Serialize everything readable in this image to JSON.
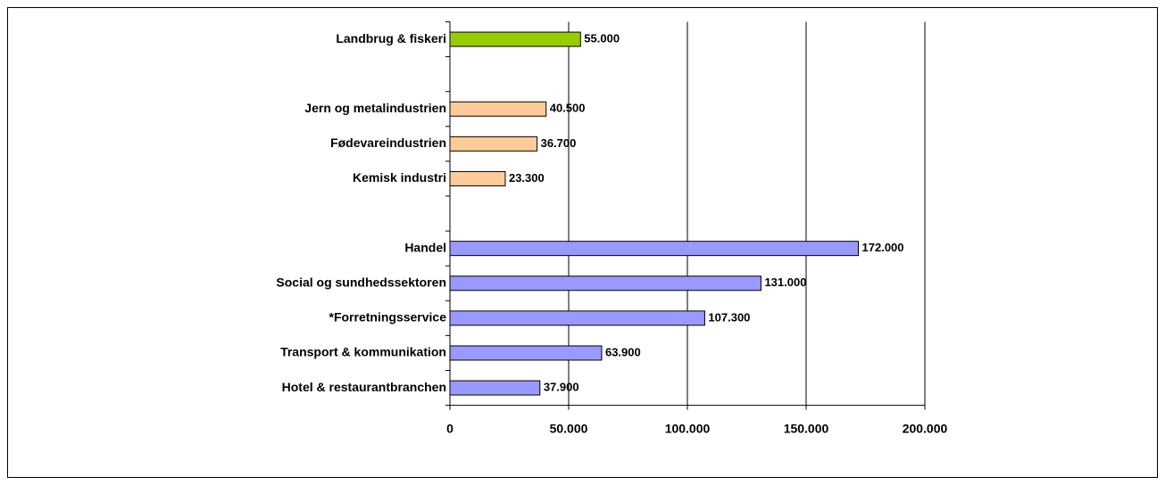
{
  "chart_data": {
    "type": "barh",
    "categories": [
      "Landbrug & fiskeri",
      null,
      "Jern og metalindustrien",
      "Fødevareindustrien",
      "Kemisk industri",
      null,
      "Handel",
      "Social og sundhedssektoren",
      "*Forretningsservice",
      "Transport & kommunikation",
      "Hotel & restaurantbranchen"
    ],
    "values": [
      55000,
      null,
      40500,
      36700,
      23300,
      null,
      172000,
      131000,
      107300,
      63900,
      37900
    ],
    "value_labels": [
      "55.000",
      null,
      "40.500",
      "36.700",
      "23.300",
      null,
      "172.000",
      "131.000",
      "107.300",
      "63.900",
      "37.900"
    ],
    "colors": [
      "#99cc00",
      null,
      "#ffcc99",
      "#ffcc99",
      "#ffcc99",
      null,
      "#9999ff",
      "#9999ff",
      "#9999ff",
      "#9999ff",
      "#9999ff"
    ],
    "xlim": [
      0,
      200000
    ],
    "xticks": [
      0,
      {
        "value": 50000,
        "label": "50.000"
      },
      {
        "value": 100000,
        "label": "100.000"
      },
      {
        "value": 150000,
        "label": "150.000"
      },
      {
        "value": 200000,
        "label": "200.000"
      }
    ],
    "grid": true
  }
}
